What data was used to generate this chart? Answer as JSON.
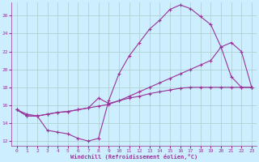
{
  "xlabel": "Windchill (Refroidissement éolien,°C)",
  "background_color": "#cceeff",
  "line_color": "#993399",
  "grid_color": "#aacccc",
  "xlim": [
    -0.5,
    23.5
  ],
  "ylim": [
    11.5,
    27.5
  ],
  "xticks": [
    0,
    1,
    2,
    3,
    4,
    5,
    6,
    7,
    8,
    9,
    10,
    11,
    12,
    13,
    14,
    15,
    16,
    17,
    18,
    19,
    20,
    21,
    22,
    23
  ],
  "yticks": [
    12,
    14,
    16,
    18,
    20,
    22,
    24,
    26
  ],
  "line1_x": [
    0,
    1,
    2,
    3,
    4,
    5,
    6,
    7,
    8,
    9,
    10,
    11,
    12,
    13,
    14,
    15,
    16,
    17,
    18,
    19,
    20,
    21,
    22,
    23
  ],
  "line1_y": [
    15.5,
    15.0,
    14.8,
    13.2,
    13.0,
    12.8,
    12.3,
    12.0,
    12.3,
    16.5,
    19.5,
    21.5,
    23.0,
    24.5,
    25.5,
    26.7,
    27.2,
    26.8,
    25.9,
    25.0,
    22.5,
    19.2,
    18.0,
    18.0
  ],
  "line2_x": [
    0,
    1,
    2,
    3,
    4,
    5,
    6,
    7,
    8,
    9,
    10,
    11,
    12,
    13,
    14,
    15,
    16,
    17,
    18,
    19,
    20,
    21,
    22,
    23
  ],
  "line2_y": [
    15.5,
    14.8,
    14.8,
    15.0,
    15.2,
    15.3,
    15.5,
    15.7,
    15.9,
    16.1,
    16.5,
    17.0,
    17.5,
    18.0,
    18.5,
    19.0,
    19.5,
    20.0,
    20.5,
    21.0,
    22.5,
    23.0,
    22.0,
    18.0
  ],
  "line3_x": [
    0,
    1,
    2,
    3,
    4,
    5,
    6,
    7,
    8,
    9,
    10,
    11,
    12,
    13,
    14,
    15,
    16,
    17,
    18,
    19,
    20,
    21,
    22,
    23
  ],
  "line3_y": [
    15.5,
    14.8,
    14.8,
    15.0,
    15.2,
    15.3,
    15.5,
    15.7,
    16.8,
    16.2,
    16.5,
    16.8,
    17.0,
    17.3,
    17.5,
    17.7,
    17.9,
    18.0,
    18.0,
    18.0,
    18.0,
    18.0,
    18.0,
    18.0
  ]
}
